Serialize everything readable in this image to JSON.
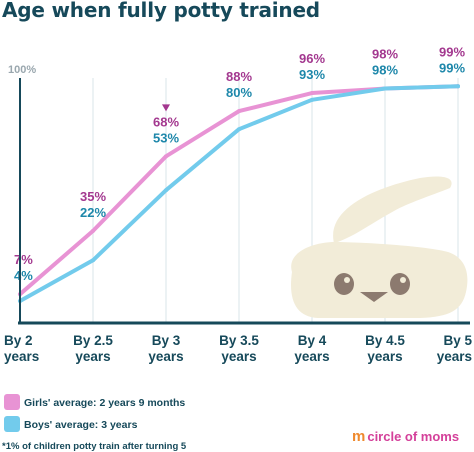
{
  "title": "Age when fully potty trained",
  "chart_data": {
    "type": "line",
    "categories": [
      "By 2\nyears",
      "By 2.5\nyears",
      "By 3\nyears",
      "By 3.5\nyears",
      "By 4\nyears",
      "By 4.5\nyears",
      "By 5\nyears"
    ],
    "ylim": [
      0,
      100
    ],
    "ytick_label": "100%",
    "series": [
      {
        "name": "Girls' average: 2 years 9 months",
        "values": [
          7,
          35,
          68,
          88,
          96,
          98,
          99
        ],
        "labels": [
          "7%",
          "35%",
          "68%",
          "88%",
          "96%",
          "98%",
          "99%"
        ],
        "color": "#e893d4",
        "label_color": "#a3388f"
      },
      {
        "name": "Boys' average: 3 years",
        "values": [
          4,
          22,
          53,
          80,
          93,
          98,
          99
        ],
        "labels": [
          "4%",
          "22%",
          "53%",
          "80%",
          "93%",
          "98%",
          "99%"
        ],
        "color": "#72cbec",
        "label_color": "#1d87aa"
      }
    ],
    "grid": true,
    "legend": "bottom-left",
    "annotation_marker": "down-triangle"
  },
  "footnote": "*1% of children potty train after turning 5",
  "logo": {
    "text": "circle of moms",
    "icon": "mom-logo-icon"
  }
}
